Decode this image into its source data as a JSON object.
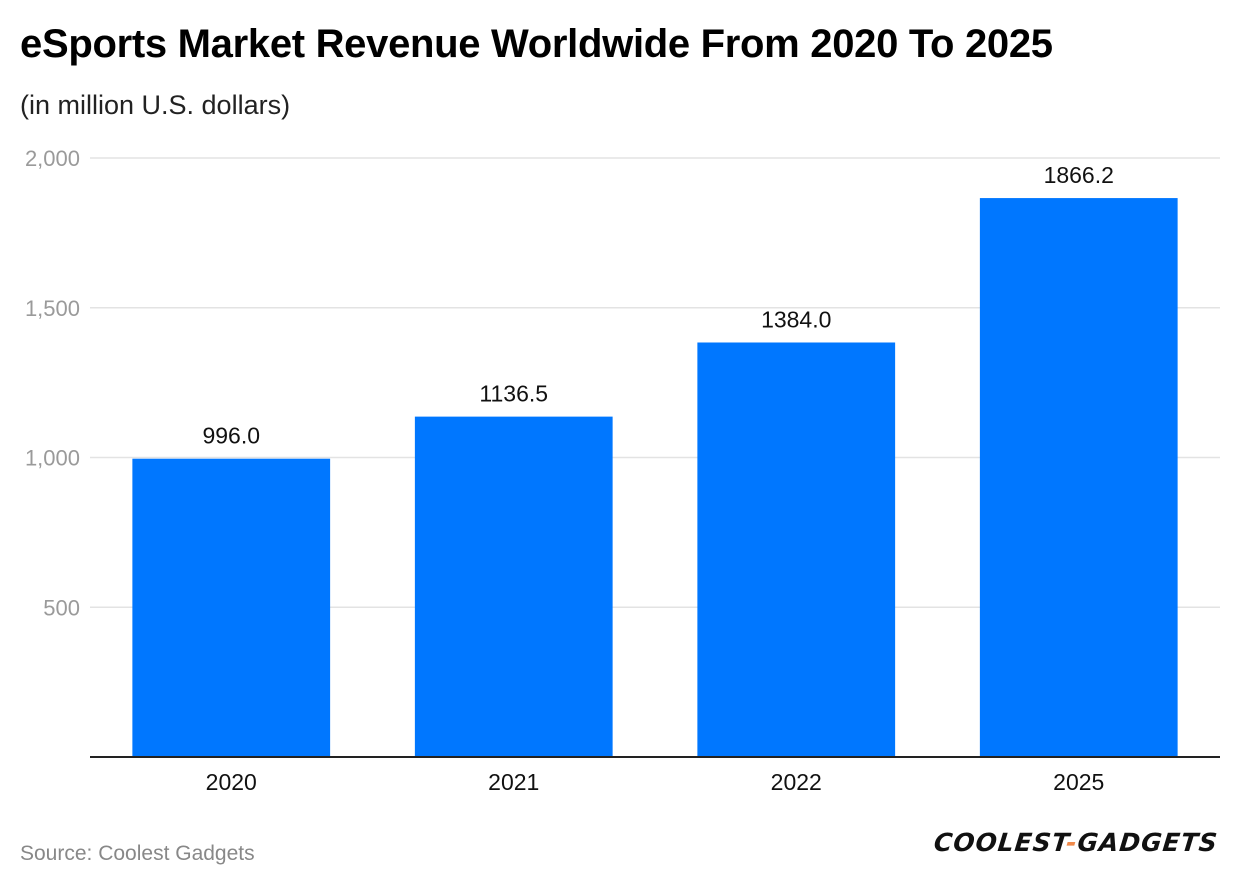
{
  "chart_data": {
    "type": "bar",
    "title": "eSports Market Revenue Worldwide From 2020 To 2025",
    "subtitle": "(in million U.S. dollars)",
    "categories": [
      "2020",
      "2021",
      "2022",
      "2025"
    ],
    "values": [
      996.0,
      1136.5,
      1384.0,
      1866.2
    ],
    "value_labels": [
      "996.0",
      "1136.5",
      "1384.0",
      "1866.2"
    ],
    "y_ticks": [
      500,
      1000,
      1500,
      2000
    ],
    "y_tick_labels": [
      "500",
      "1,000",
      "1,500",
      "2,000"
    ],
    "ylim": [
      0,
      2000
    ],
    "xlabel": "",
    "ylabel": "",
    "grid": true,
    "bar_color": "#0077ff"
  },
  "footer": {
    "source": "Source: Coolest Gadgets",
    "logo_left": "COOLEST",
    "logo_dash": "-",
    "logo_right": "GADGETS"
  }
}
